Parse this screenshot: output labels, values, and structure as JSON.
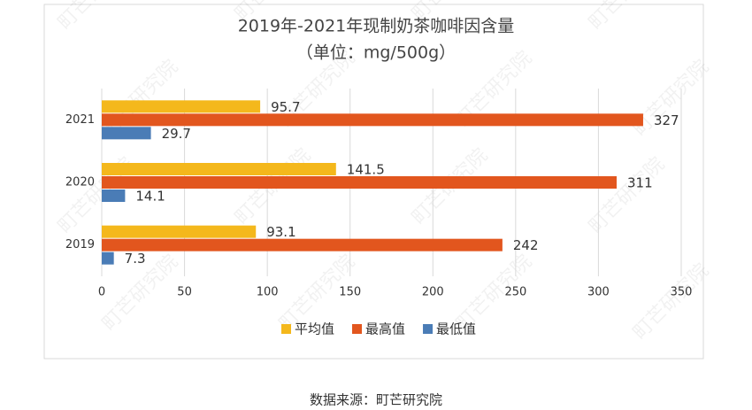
{
  "chart_data": {
    "type": "hbar",
    "title": "2019年-2021年现制奶茶咖啡因含量",
    "subtitle": "（单位：mg/500g）",
    "categories": [
      "2019",
      "2020",
      "2021"
    ],
    "series": [
      {
        "name": "平均值",
        "color": "#f4b81c",
        "values": [
          93.1,
          141.5,
          95.7
        ]
      },
      {
        "name": "最高值",
        "color": "#e2561e",
        "values": [
          242,
          311,
          327
        ]
      },
      {
        "name": "最低值",
        "color": "#4a7cb6",
        "values": [
          7.3,
          14.1,
          29.7
        ]
      }
    ],
    "xlim": [
      0,
      350
    ],
    "xticks": [
      0,
      50,
      100,
      150,
      200,
      250,
      300,
      350
    ],
    "grid": true,
    "legend": "bottom",
    "source": "数据来源：町芒研究院",
    "watermark": "町芒研究院"
  }
}
